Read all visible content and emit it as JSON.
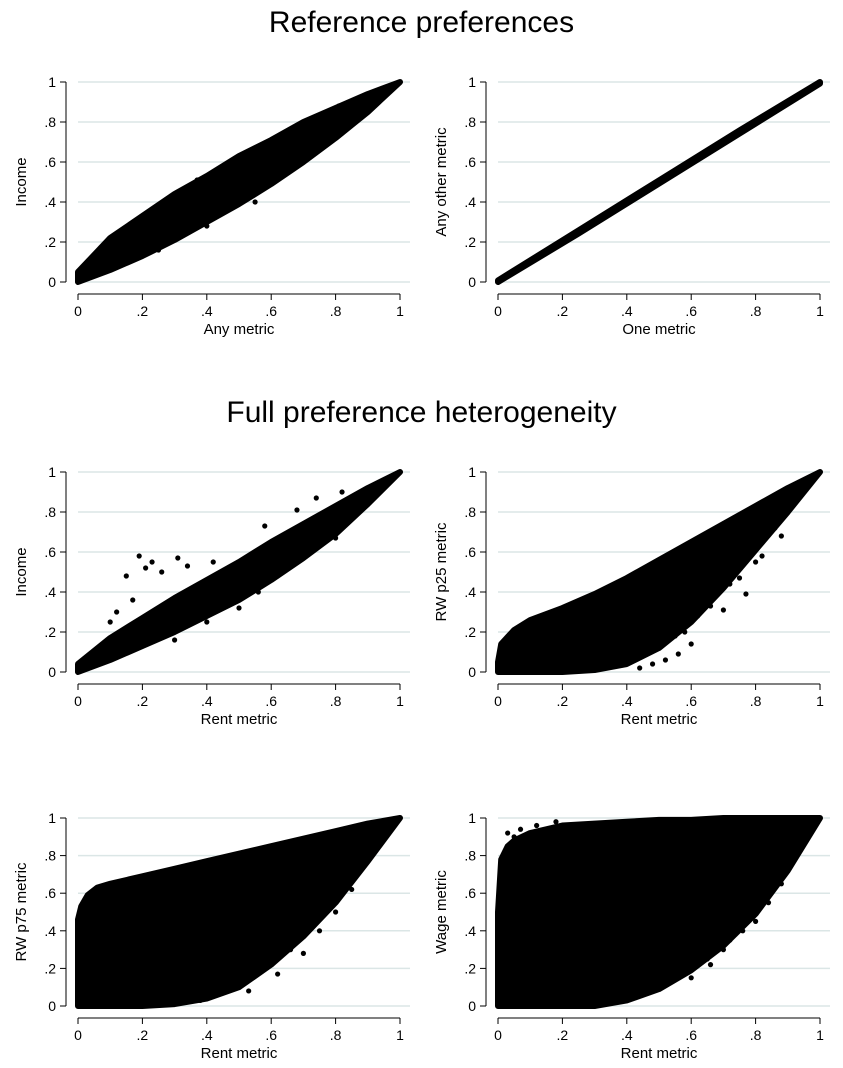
{
  "titles": {
    "top": "Reference preferences",
    "middle": "Full preference heterogeneity"
  },
  "colors": {
    "points": "#000000",
    "grid": "#dbe6e6",
    "axis": "#000000"
  },
  "chart_data": [
    {
      "id": "income-any",
      "type": "scatter",
      "section": "Reference preferences",
      "xlabel": "Any metric",
      "ylabel": "Income",
      "xlim": [
        0,
        1
      ],
      "ylim": [
        0,
        1
      ],
      "xticks": [
        "0",
        ".2",
        ".4",
        ".6",
        ".8",
        "1"
      ],
      "yticks": [
        "0",
        ".2",
        ".4",
        ".6",
        ".8",
        "1"
      ],
      "grid": true,
      "band": {
        "x": [
          0,
          0.1,
          0.2,
          0.3,
          0.4,
          0.5,
          0.6,
          0.7,
          0.8,
          0.9,
          1
        ],
        "upper": [
          0.05,
          0.22,
          0.33,
          0.44,
          0.53,
          0.63,
          0.71,
          0.8,
          0.87,
          0.94,
          1
        ],
        "lower": [
          0,
          0.06,
          0.13,
          0.21,
          0.3,
          0.39,
          0.49,
          0.6,
          0.72,
          0.85,
          1
        ]
      },
      "outliers": [
        [
          0.07,
          0.16
        ],
        [
          0.15,
          0.26
        ],
        [
          0.3,
          0.42
        ],
        [
          0.37,
          0.51
        ],
        [
          0.44,
          0.56
        ],
        [
          0.46,
          0.53
        ],
        [
          0.53,
          0.62
        ],
        [
          0.62,
          0.68
        ],
        [
          0.75,
          0.78
        ],
        [
          0.77,
          0.78
        ],
        [
          0.81,
          0.88
        ],
        [
          0.86,
          0.91
        ],
        [
          0.12,
          0.1
        ],
        [
          0.25,
          0.16
        ],
        [
          0.4,
          0.28
        ],
        [
          0.55,
          0.4
        ],
        [
          0.9,
          0.85
        ]
      ]
    },
    {
      "id": "other-one",
      "type": "scatter",
      "section": "Reference preferences",
      "xlabel": "One metric",
      "ylabel": "Any other metric",
      "xlim": [
        0,
        1
      ],
      "ylim": [
        0,
        1
      ],
      "xticks": [
        "0",
        ".2",
        ".4",
        ".6",
        ".8",
        "1"
      ],
      "yticks": [
        "0",
        ".2",
        ".4",
        ".6",
        ".8",
        "1"
      ],
      "grid": true,
      "band": {
        "x": [
          0,
          0.25,
          0.5,
          0.75,
          1
        ],
        "upper": [
          0.008,
          0.258,
          0.508,
          0.758,
          1
        ],
        "lower": [
          0,
          0.242,
          0.492,
          0.742,
          0.992
        ]
      },
      "outliers": []
    },
    {
      "id": "income-rent",
      "type": "scatter",
      "section": "Full preference heterogeneity",
      "xlabel": "Rent metric",
      "ylabel": "Income",
      "xlim": [
        0,
        1
      ],
      "ylim": [
        0,
        1
      ],
      "xticks": [
        "0",
        ".2",
        ".4",
        ".6",
        ".8",
        "1"
      ],
      "yticks": [
        "0",
        ".2",
        ".4",
        ".6",
        ".8",
        "1"
      ],
      "grid": true,
      "band": {
        "x": [
          0,
          0.1,
          0.2,
          0.3,
          0.4,
          0.5,
          0.6,
          0.7,
          0.8,
          0.9,
          1
        ],
        "upper": [
          0.04,
          0.17,
          0.27,
          0.37,
          0.46,
          0.55,
          0.65,
          0.74,
          0.83,
          0.92,
          1
        ],
        "lower": [
          0,
          0.06,
          0.13,
          0.2,
          0.28,
          0.36,
          0.46,
          0.57,
          0.69,
          0.84,
          1
        ]
      },
      "outliers": [
        [
          0.19,
          0.58
        ],
        [
          0.23,
          0.55
        ],
        [
          0.21,
          0.52
        ],
        [
          0.15,
          0.48
        ],
        [
          0.26,
          0.5
        ],
        [
          0.31,
          0.57
        ],
        [
          0.34,
          0.53
        ],
        [
          0.42,
          0.55
        ],
        [
          0.58,
          0.73
        ],
        [
          0.68,
          0.81
        ],
        [
          0.74,
          0.87
        ],
        [
          0.82,
          0.9
        ],
        [
          0.85,
          0.86
        ],
        [
          0.1,
          0.25
        ],
        [
          0.12,
          0.3
        ],
        [
          0.17,
          0.36
        ],
        [
          0.4,
          0.25
        ],
        [
          0.5,
          0.32
        ],
        [
          0.56,
          0.4
        ],
        [
          0.62,
          0.48
        ],
        [
          0.3,
          0.16
        ],
        [
          0.8,
          0.67
        ]
      ]
    },
    {
      "id": "rwp25-rent",
      "type": "scatter",
      "section": "Full preference heterogeneity",
      "xlabel": "Rent metric",
      "ylabel": "RW p25 metric",
      "xlim": [
        0,
        1
      ],
      "ylim": [
        0,
        1
      ],
      "xticks": [
        "0",
        ".2",
        ".4",
        ".6",
        ".8",
        "1"
      ],
      "yticks": [
        "0",
        ".2",
        ".4",
        ".6",
        ".8",
        "1"
      ],
      "grid": true,
      "band": {
        "x": [
          0,
          0.01,
          0.05,
          0.1,
          0.2,
          0.3,
          0.4,
          0.5,
          0.6,
          0.7,
          0.8,
          0.9,
          1
        ],
        "upper": [
          0.05,
          0.14,
          0.21,
          0.26,
          0.32,
          0.39,
          0.47,
          0.56,
          0.65,
          0.74,
          0.83,
          0.92,
          1
        ],
        "lower": [
          0,
          0,
          0,
          0,
          0,
          0.01,
          0.04,
          0.12,
          0.25,
          0.42,
          0.61,
          0.8,
          1
        ]
      },
      "outliers": [
        [
          0.3,
          0.02
        ],
        [
          0.36,
          0.04
        ],
        [
          0.42,
          0.06
        ],
        [
          0.46,
          0.1
        ],
        [
          0.5,
          0.14
        ],
        [
          0.52,
          0.06
        ],
        [
          0.55,
          0.18
        ],
        [
          0.58,
          0.2
        ],
        [
          0.6,
          0.14
        ],
        [
          0.62,
          0.28
        ],
        [
          0.66,
          0.33
        ],
        [
          0.7,
          0.31
        ],
        [
          0.72,
          0.44
        ],
        [
          0.75,
          0.47
        ],
        [
          0.77,
          0.39
        ],
        [
          0.8,
          0.55
        ],
        [
          0.82,
          0.58
        ],
        [
          0.86,
          0.72
        ],
        [
          0.88,
          0.68
        ],
        [
          0.44,
          0.02
        ],
        [
          0.48,
          0.04
        ],
        [
          0.56,
          0.09
        ]
      ]
    },
    {
      "id": "rwp75-rent",
      "type": "scatter",
      "section": "Full preference heterogeneity",
      "xlabel": "Rent metric",
      "ylabel": "RW p75 metric",
      "xlim": [
        0,
        1
      ],
      "ylim": [
        0,
        1
      ],
      "xticks": [
        "0",
        ".2",
        ".4",
        ".6",
        ".8",
        "1"
      ],
      "yticks": [
        "0",
        ".2",
        ".4",
        ".6",
        ".8",
        "1"
      ],
      "grid": true,
      "band": {
        "x": [
          0,
          0.01,
          0.03,
          0.06,
          0.1,
          0.2,
          0.3,
          0.4,
          0.5,
          0.6,
          0.7,
          0.8,
          0.9,
          1
        ],
        "upper": [
          0.46,
          0.53,
          0.59,
          0.63,
          0.65,
          0.69,
          0.73,
          0.77,
          0.81,
          0.85,
          0.89,
          0.93,
          0.97,
          1
        ],
        "lower": [
          0,
          0,
          0,
          0,
          0,
          0,
          0.01,
          0.04,
          0.1,
          0.22,
          0.37,
          0.55,
          0.77,
          1
        ]
      },
      "outliers": [
        [
          0.28,
          0.02
        ],
        [
          0.33,
          0.05
        ],
        [
          0.38,
          0.03
        ],
        [
          0.44,
          0.07
        ],
        [
          0.5,
          0.12
        ],
        [
          0.53,
          0.08
        ],
        [
          0.58,
          0.2
        ],
        [
          0.62,
          0.17
        ],
        [
          0.66,
          0.3
        ],
        [
          0.7,
          0.28
        ],
        [
          0.75,
          0.4
        ],
        [
          0.8,
          0.5
        ],
        [
          0.85,
          0.62
        ],
        [
          0.6,
          0.28
        ],
        [
          0.01,
          0.47
        ],
        [
          0.02,
          0.43
        ],
        [
          0.36,
          0.04
        ],
        [
          0.47,
          0.1
        ]
      ]
    },
    {
      "id": "wage-rent",
      "type": "scatter",
      "section": "Full preference heterogeneity",
      "xlabel": "Rent metric",
      "ylabel": "Wage metric",
      "xlim": [
        0,
        1
      ],
      "ylim": [
        0,
        1
      ],
      "xticks": [
        "0",
        ".2",
        ".4",
        ".6",
        ".8",
        "1"
      ],
      "yticks": [
        "0",
        ".2",
        ".4",
        ".6",
        ".8",
        "1"
      ],
      "grid": true,
      "band": {
        "x": [
          0,
          0.01,
          0.03,
          0.05,
          0.1,
          0.15,
          0.2,
          0.3,
          0.4,
          0.5,
          0.6,
          0.7,
          0.8,
          0.9,
          1
        ],
        "upper": [
          0.5,
          0.78,
          0.85,
          0.88,
          0.92,
          0.94,
          0.96,
          0.97,
          0.98,
          0.99,
          0.99,
          1,
          1,
          1,
          1
        ],
        "lower": [
          0,
          0,
          0,
          0,
          0,
          0,
          0,
          0,
          0.03,
          0.09,
          0.19,
          0.32,
          0.49,
          0.72,
          1
        ]
      },
      "outliers": [
        [
          0.07,
          0.94
        ],
        [
          0.12,
          0.96
        ],
        [
          0.05,
          0.9
        ],
        [
          0.03,
          0.92
        ],
        [
          0.18,
          0.98
        ],
        [
          0.35,
          0.02
        ],
        [
          0.4,
          0.04
        ],
        [
          0.45,
          0.06
        ],
        [
          0.5,
          0.1
        ],
        [
          0.55,
          0.14
        ],
        [
          0.6,
          0.2
        ],
        [
          0.65,
          0.25
        ],
        [
          0.7,
          0.3
        ],
        [
          0.72,
          0.35
        ],
        [
          0.76,
          0.4
        ],
        [
          0.8,
          0.45
        ],
        [
          0.84,
          0.55
        ],
        [
          0.88,
          0.65
        ],
        [
          0.6,
          0.15
        ],
        [
          0.66,
          0.22
        ]
      ]
    }
  ]
}
